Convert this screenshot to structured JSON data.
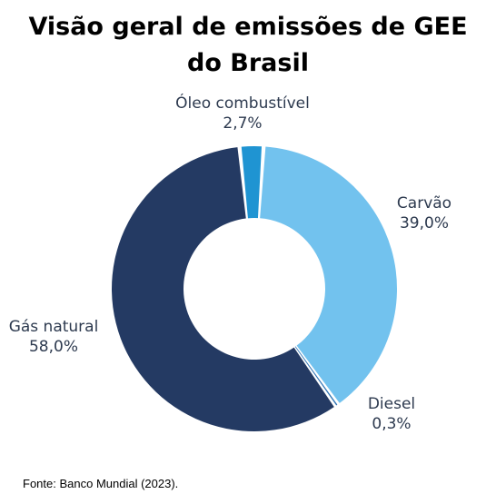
{
  "chart_data": {
    "type": "pie",
    "title": "Visão geral de emissões de GEE do Brasil",
    "title_lines": [
      "Visão geral de emissões de GEE",
      "do Brasil"
    ],
    "donut": true,
    "categories": [
      "Óleo combustível",
      "Carvão",
      "Diesel",
      "Gás natural"
    ],
    "values": [
      2.7,
      39.0,
      0.3,
      58.0
    ],
    "value_labels": [
      "2,7%",
      "39,0%",
      "0,3%",
      "58,0%"
    ],
    "colors": [
      "#1f94d2",
      "#72c2ee",
      "#2f74b5",
      "#243a63"
    ],
    "legend": "none"
  },
  "labels": {
    "oleo": {
      "name": "Óleo combustível",
      "value": "2,7%"
    },
    "carvao": {
      "name": "Carvão",
      "value": "39,0%"
    },
    "diesel": {
      "name": "Diesel",
      "value": "0,3%"
    },
    "gas": {
      "name": "Gás natural",
      "value": "58,0%"
    }
  },
  "source": "Fonte:  Banco Mundial  (2023)."
}
